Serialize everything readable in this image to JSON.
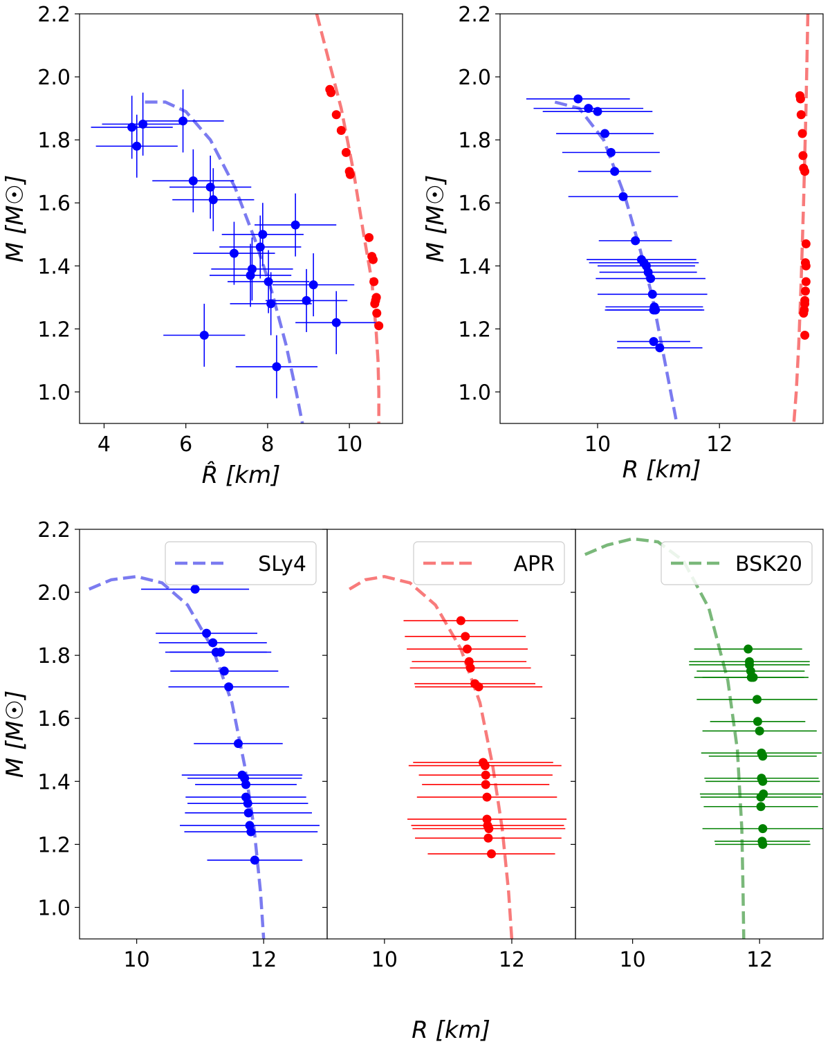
{
  "figure": {
    "shared_xlabel": "R [km]",
    "colors": {
      "blue": "#0000ff",
      "red": "#ff0000",
      "green": "#008000",
      "blue_curve": "#7b7bf0",
      "red_curve": "#f87b7b",
      "green_curve": "#7ab87a"
    }
  },
  "chart_data": [
    {
      "id": "top-left",
      "type": "scatter",
      "xlabel": "R̂ [km]",
      "ylabel": "M [M☉]",
      "xlim": [
        3.4,
        11.3
      ],
      "ylim": [
        0.9,
        2.2
      ],
      "xticks": [
        4,
        6,
        8,
        10
      ],
      "yticks": [
        1.0,
        1.2,
        1.4,
        1.6,
        1.8,
        2.0,
        2.2
      ],
      "curves": [
        {
          "name": "blue-curve",
          "color": "#7b7bf0",
          "x": [
            5.0,
            5.5,
            6.0,
            6.6,
            7.2,
            7.7,
            8.1,
            8.45,
            8.7,
            8.85
          ],
          "y": [
            1.92,
            1.92,
            1.89,
            1.8,
            1.65,
            1.48,
            1.32,
            1.15,
            1.0,
            0.9
          ]
        },
        {
          "name": "red-curve",
          "color": "#f87b7b",
          "x": [
            9.2,
            9.5,
            9.8,
            10.1,
            10.35,
            10.55,
            10.65,
            10.7,
            10.72,
            10.72
          ],
          "y": [
            2.2,
            2.05,
            1.9,
            1.7,
            1.5,
            1.35,
            1.2,
            1.1,
            1.0,
            0.9
          ]
        }
      ],
      "series": [
        {
          "name": "blue-points",
          "color": "#0000ff",
          "x": [
            4.68,
            4.95,
            4.8,
            5.93,
            6.18,
            6.6,
            6.67,
            8.68,
            7.88,
            7.82,
            7.18,
            7.62,
            7.58,
            8.02,
            9.12,
            8.08,
            8.95,
            9.68,
            6.45,
            8.22
          ],
          "y": [
            1.84,
            1.85,
            1.78,
            1.86,
            1.67,
            1.65,
            1.61,
            1.53,
            1.5,
            1.46,
            1.44,
            1.39,
            1.37,
            1.35,
            1.34,
            1.28,
            1.29,
            1.22,
            1.18,
            1.08
          ],
          "xerr": [
            1.0,
            1.0,
            1.0,
            1.0,
            1.0,
            1.0,
            1.0,
            1.0,
            1.0,
            1.0,
            1.0,
            1.0,
            1.0,
            1.0,
            1.0,
            1.0,
            1.0,
            1.0,
            1.0,
            1.0
          ],
          "yerr": [
            0.1,
            0.1,
            0.1,
            0.1,
            0.1,
            0.1,
            0.1,
            0.1,
            0.1,
            0.1,
            0.1,
            0.1,
            0.1,
            0.1,
            0.1,
            0.1,
            0.1,
            0.1,
            0.1,
            0.1
          ]
        },
        {
          "name": "red-points",
          "color": "#ff0000",
          "x": [
            9.52,
            9.55,
            9.68,
            9.8,
            9.92,
            10.0,
            10.02,
            10.48,
            10.55,
            10.58,
            10.6,
            10.66,
            10.64,
            10.62,
            10.67,
            10.72
          ],
          "y": [
            1.96,
            1.95,
            1.88,
            1.83,
            1.76,
            1.7,
            1.69,
            1.49,
            1.43,
            1.42,
            1.35,
            1.3,
            1.29,
            1.28,
            1.25,
            1.21
          ],
          "xerr": [],
          "yerr": []
        }
      ]
    },
    {
      "id": "top-right",
      "type": "scatter",
      "xlabel": "R [km]",
      "ylabel": "M [M☉]",
      "xlim": [
        8.4,
        13.7
      ],
      "ylim": [
        0.9,
        2.2
      ],
      "xticks": [
        10,
        12
      ],
      "yticks": [
        1.0,
        1.2,
        1.4,
        1.6,
        1.8,
        2.0,
        2.2
      ],
      "curves": [
        {
          "name": "blue-curve",
          "color": "#7b7bf0",
          "x": [
            9.3,
            9.7,
            10.1,
            10.45,
            10.7,
            10.9,
            11.05,
            11.2,
            11.3
          ],
          "y": [
            1.92,
            1.9,
            1.8,
            1.62,
            1.45,
            1.3,
            1.15,
            1.0,
            0.9
          ]
        },
        {
          "name": "red-curve",
          "color": "#f87b7b",
          "x": [
            13.45,
            13.42,
            13.38,
            13.34,
            13.3,
            13.26,
            13.22
          ],
          "y": [
            2.2,
            1.9,
            1.6,
            1.35,
            1.15,
            1.0,
            0.9
          ]
        }
      ],
      "series": [
        {
          "name": "blue-points",
          "color": "#0000ff",
          "x": [
            9.68,
            9.85,
            10.0,
            10.12,
            10.22,
            10.28,
            10.42,
            10.62,
            10.72,
            10.76,
            10.8,
            10.83,
            10.87,
            10.9,
            10.93,
            10.92,
            10.95,
            10.92,
            11.02
          ],
          "y": [
            1.93,
            1.9,
            1.89,
            1.82,
            1.76,
            1.7,
            1.62,
            1.48,
            1.42,
            1.41,
            1.4,
            1.38,
            1.36,
            1.31,
            1.27,
            1.26,
            1.26,
            1.16,
            1.14
          ],
          "xerr": [
            0.85,
            0.9,
            0.9,
            0.8,
            0.8,
            0.6,
            0.9,
            0.6,
            0.9,
            0.9,
            0.8,
            0.8,
            0.9,
            0.9,
            0.8,
            0.8,
            0.8,
            0.6,
            0.7
          ],
          "yerr": []
        },
        {
          "name": "red-points",
          "color": "#ff0000",
          "x": [
            13.32,
            13.33,
            13.34,
            13.36,
            13.37,
            13.38,
            13.4,
            13.42,
            13.41,
            13.42,
            13.42,
            13.41,
            13.4,
            13.4,
            13.39,
            13.38,
            13.4
          ],
          "y": [
            1.94,
            1.93,
            1.88,
            1.82,
            1.75,
            1.71,
            1.7,
            1.47,
            1.41,
            1.4,
            1.35,
            1.32,
            1.29,
            1.28,
            1.26,
            1.25,
            1.18
          ],
          "xerr": [],
          "yerr": []
        }
      ]
    },
    {
      "id": "bottom-sly4",
      "type": "scatter",
      "legend": "SLy4",
      "ylabel": "M [M☉]",
      "xlim": [
        9.1,
        13.0
      ],
      "ylim": [
        0.9,
        2.2
      ],
      "xticks": [
        10,
        12
      ],
      "yticks": [
        1.0,
        1.2,
        1.4,
        1.6,
        1.8,
        2.0,
        2.2
      ],
      "curves": [
        {
          "name": "sly4-curve",
          "color": "#7b7bf0",
          "x": [
            9.25,
            9.6,
            10.0,
            10.4,
            10.8,
            11.2,
            11.5,
            11.7,
            11.85,
            11.95,
            12.0
          ],
          "y": [
            2.01,
            2.04,
            2.05,
            2.03,
            1.96,
            1.82,
            1.65,
            1.45,
            1.25,
            1.05,
            0.9
          ]
        }
      ],
      "series": [
        {
          "name": "sly4-points",
          "color": "#0000ff",
          "x": [
            10.92,
            11.1,
            11.2,
            11.25,
            11.32,
            11.38,
            11.45,
            11.6,
            11.66,
            11.7,
            11.72,
            11.72,
            11.75,
            11.76,
            11.78,
            11.8,
            11.86
          ],
          "y": [
            2.01,
            1.87,
            1.84,
            1.81,
            1.81,
            1.75,
            1.7,
            1.52,
            1.42,
            1.41,
            1.39,
            1.35,
            1.33,
            1.3,
            1.26,
            1.24,
            1.15
          ],
          "xerr": [
            0.85,
            0.8,
            0.85,
            0.8,
            0.8,
            0.85,
            0.95,
            0.7,
            0.95,
            0.9,
            0.8,
            0.95,
            0.95,
            1.0,
            1.1,
            1.05,
            0.75
          ],
          "yerr": []
        }
      ]
    },
    {
      "id": "bottom-apr",
      "type": "scatter",
      "legend": "APR",
      "xlim": [
        9.1,
        13.0
      ],
      "ylim": [
        0.9,
        2.2
      ],
      "xticks": [
        10,
        12
      ],
      "yticks": [
        1.0,
        1.2,
        1.4,
        1.6,
        1.8,
        2.0,
        2.2
      ],
      "curves": [
        {
          "name": "apr-curve",
          "color": "#f87b7b",
          "x": [
            9.45,
            9.7,
            10.0,
            10.4,
            10.8,
            11.2,
            11.5,
            11.7,
            11.85,
            11.95,
            12.0
          ],
          "y": [
            2.01,
            2.04,
            2.05,
            2.03,
            1.96,
            1.82,
            1.65,
            1.45,
            1.25,
            1.05,
            0.9
          ]
        }
      ],
      "series": [
        {
          "name": "apr-points",
          "color": "#ff0000",
          "x": [
            11.2,
            11.27,
            11.3,
            11.33,
            11.35,
            11.42,
            11.48,
            11.55,
            11.58,
            11.59,
            11.59,
            11.61,
            11.61,
            11.62,
            11.64,
            11.63,
            11.68
          ],
          "y": [
            1.91,
            1.86,
            1.82,
            1.78,
            1.76,
            1.71,
            1.7,
            1.46,
            1.45,
            1.42,
            1.39,
            1.35,
            1.28,
            1.26,
            1.25,
            1.22,
            1.17
          ],
          "xerr": [
            0.9,
            0.95,
            0.95,
            0.9,
            0.95,
            0.95,
            1.0,
            1.1,
            1.2,
            1.05,
            1.0,
            1.1,
            1.25,
            1.2,
            1.2,
            1.15,
            1.0
          ],
          "yerr": []
        }
      ]
    },
    {
      "id": "bottom-bsk20",
      "type": "scatter",
      "legend": "BSK20",
      "xlim": [
        9.1,
        13.0
      ],
      "ylim": [
        0.9,
        2.2
      ],
      "xticks": [
        10,
        12
      ],
      "yticks": [
        1.0,
        1.2,
        1.4,
        1.6,
        1.8,
        2.0,
        2.2
      ],
      "curves": [
        {
          "name": "bsk20-curve",
          "color": "#7ab87a",
          "x": [
            9.25,
            9.6,
            10.0,
            10.4,
            10.8,
            11.2,
            11.5,
            11.65,
            11.72,
            11.74,
            11.75
          ],
          "y": [
            2.12,
            2.15,
            2.17,
            2.16,
            2.1,
            1.95,
            1.72,
            1.5,
            1.25,
            1.05,
            0.9
          ]
        }
      ],
      "series": [
        {
          "name": "bsk20-points",
          "color": "#008000",
          "x": [
            11.82,
            11.84,
            11.84,
            11.86,
            11.87,
            11.9,
            11.96,
            11.97,
            12.0,
            12.03,
            12.05,
            12.03,
            12.05,
            12.06,
            12.02,
            12.02,
            12.05,
            12.04,
            12.05
          ],
          "y": [
            1.82,
            1.78,
            1.77,
            1.75,
            1.73,
            1.73,
            1.66,
            1.59,
            1.56,
            1.49,
            1.48,
            1.41,
            1.4,
            1.36,
            1.35,
            1.32,
            1.25,
            1.21,
            1.2
          ],
          "xerr": [
            0.85,
            0.95,
            0.95,
            0.85,
            0.9,
            0.8,
            0.95,
            0.75,
            0.9,
            0.95,
            0.85,
            0.9,
            0.9,
            1.0,
            0.95,
            0.9,
            0.95,
            0.75,
            0.75
          ],
          "yerr": []
        }
      ]
    }
  ]
}
